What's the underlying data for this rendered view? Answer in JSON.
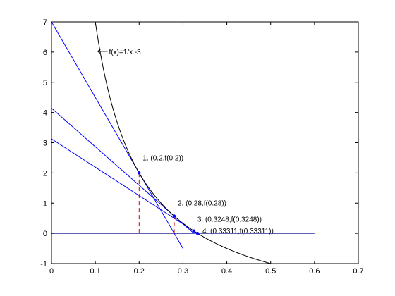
{
  "chart_data": {
    "type": "line",
    "title": "",
    "xlabel": "",
    "ylabel": "",
    "xlim": [
      0,
      0.7
    ],
    "ylim": [
      -1,
      7
    ],
    "grid": false,
    "legend": "none",
    "x_ticks": [
      {
        "value": 0,
        "label": "0"
      },
      {
        "value": 0.1,
        "label": "0.1"
      },
      {
        "value": 0.2,
        "label": "0.2"
      },
      {
        "value": 0.3,
        "label": "0.3"
      },
      {
        "value": 0.4,
        "label": "0.4"
      },
      {
        "value": 0.5,
        "label": "0.5"
      },
      {
        "value": 0.6,
        "label": "0.6"
      },
      {
        "value": 0.7,
        "label": "0.7"
      }
    ],
    "y_ticks": [
      {
        "value": -1,
        "label": "-1"
      },
      {
        "value": 0,
        "label": "0"
      },
      {
        "value": 1,
        "label": "1"
      },
      {
        "value": 2,
        "label": "2"
      },
      {
        "value": 3,
        "label": "3"
      },
      {
        "value": 4,
        "label": "4"
      },
      {
        "value": 5,
        "label": "5"
      },
      {
        "value": 6,
        "label": "6"
      },
      {
        "value": 7,
        "label": "7"
      }
    ],
    "curve": {
      "label": "f(x)=1/x -3",
      "color": "#000000",
      "x_from": 0.1,
      "x_to": 0.5,
      "label_anchor": [
        0.115,
        6.0
      ]
    },
    "zero_line": {
      "x": [
        0,
        0.6
      ],
      "y": [
        0,
        0
      ],
      "color": "#00008b"
    },
    "tangents": [
      {
        "x": [
          0,
          0.3
        ],
        "y": [
          7,
          -0.5
        ],
        "color": "#0000ff"
      },
      {
        "x": [
          0,
          0.3248
        ],
        "y": [
          4.1428,
          0.0
        ],
        "color": "#0000ff"
      },
      {
        "x": [
          0,
          0.33311
        ],
        "y": [
          3.1275,
          0.0
        ],
        "color": "#0000ff"
      }
    ],
    "dropdowns": [
      {
        "x": 0.2,
        "y_from": 0,
        "y_to": 2,
        "color": "#cc0000"
      },
      {
        "x": 0.28,
        "y_from": 0,
        "y_to": 0.5714,
        "color": "#cc0000"
      }
    ],
    "points": [
      {
        "x": 0.2,
        "y": 2.0,
        "label": "1. (0.2,f(0.2))"
      },
      {
        "x": 0.28,
        "y": 0.5714,
        "label": "2. (0.28,f(0.28))"
      },
      {
        "x": 0.3248,
        "y": 0.0788,
        "label": "3. (0.3248,f(0.3248))"
      },
      {
        "x": 0.33311,
        "y": 0.002,
        "label": "4. (0.33311,f(0.33311))"
      }
    ],
    "point_color": "#0000ff"
  }
}
